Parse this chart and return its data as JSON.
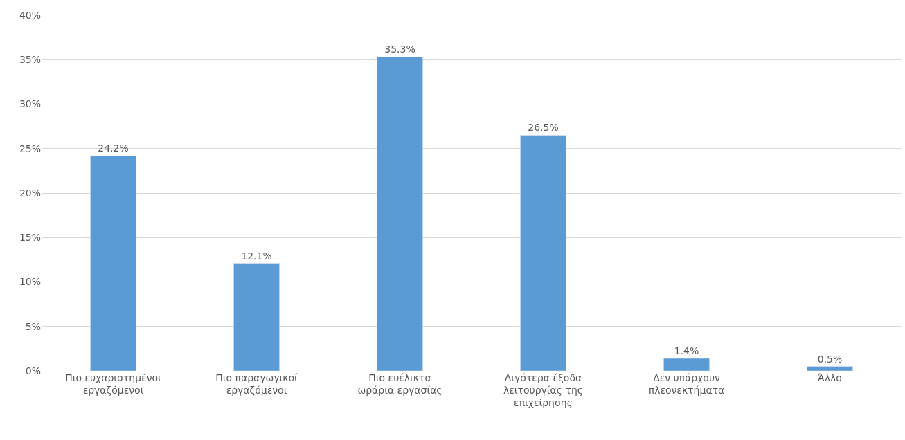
{
  "chart_data": {
    "type": "bar",
    "categories": [
      "Πιο ευχαριστημένοι\nεργαζόμενοι",
      "Πιο παραγωγικοί\nεργαζόμενοι",
      "Πιο ευέλικτα\nωράρια εργασίας",
      "Λιγότερα έξοδα\nλειτουργίας της\nεπιχείρησης",
      "Δεν υπάρχουν\nπλεονεκτήματα",
      "Άλλο"
    ],
    "values": [
      24.2,
      12.1,
      35.3,
      26.5,
      1.4,
      0.5
    ],
    "value_labels": [
      "24.2%",
      "12.1%",
      "35.3%",
      "26.5%",
      "1.4%",
      "0.5%"
    ],
    "color": "#5b9bd5",
    "ylim": [
      0,
      40
    ],
    "yticks": [
      {
        "value": 0,
        "label": "0%"
      },
      {
        "value": 5,
        "label": "5%"
      },
      {
        "value": 10,
        "label": "10%"
      },
      {
        "value": 15,
        "label": "15%"
      },
      {
        "value": 20,
        "label": "20%"
      },
      {
        "value": 25,
        "label": "25%"
      },
      {
        "value": 30,
        "label": "30%"
      },
      {
        "value": 35,
        "label": "35%"
      },
      {
        "value": 40,
        "label": "40%"
      }
    ],
    "grid": "y"
  }
}
